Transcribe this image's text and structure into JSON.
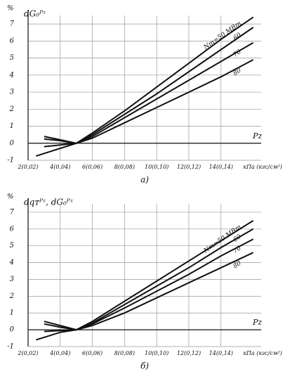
{
  "chart_data": [
    {
      "type": "line",
      "panel": "а)",
      "y_unit": "%",
      "ylabel": "dG₀ᴾᶻ",
      "xlabel": "Pz",
      "x_unit": "кПа (кгс/см²)",
      "x": [
        2.5,
        3,
        4,
        5,
        6,
        8,
        10,
        12,
        14,
        16
      ],
      "series": [
        {
          "name": "Nт=50 МВт",
          "color": "#111111",
          "values": [
            -0.75,
            -0.6,
            -0.3,
            0,
            0.6,
            1.9,
            3.3,
            4.7,
            6.1,
            7.4
          ]
        },
        {
          "name": "60",
          "color": "#111111",
          "values": [
            null,
            0.25,
            0.15,
            0,
            0.5,
            1.7,
            2.9,
            4.2,
            5.5,
            6.8
          ]
        },
        {
          "name": "70",
          "color": "#111111",
          "values": [
            null,
            0.4,
            0.2,
            0,
            0.4,
            1.5,
            2.6,
            3.7,
            4.8,
            5.9
          ]
        },
        {
          "name": "80",
          "color": "#111111",
          "values": [
            null,
            -0.2,
            -0.1,
            0,
            0.3,
            1.2,
            2.1,
            3.0,
            3.9,
            4.9
          ]
        }
      ],
      "xlim": [
        2,
        16.5
      ],
      "ylim": [
        -1,
        7.5
      ],
      "xticks": [
        {
          "value": 2,
          "label": "2(0,02)"
        },
        {
          "value": 4,
          "label": "4(0,04)"
        },
        {
          "value": 6,
          "label": "6(0,06)"
        },
        {
          "value": 8,
          "label": "8(0,08)"
        },
        {
          "value": 10,
          "label": "10(0,10)"
        },
        {
          "value": 12,
          "label": "12(0,12)"
        },
        {
          "value": 14,
          "label": "14(0,14)"
        }
      ],
      "yticks": [
        -1,
        0,
        1,
        2,
        3,
        4,
        5,
        6,
        7
      ],
      "grid": true
    },
    {
      "type": "line",
      "panel": "б)",
      "y_unit": "%",
      "ylabel": "dqᴛᴾᶻ, dG₀ᴾᶻ",
      "xlabel": "Pz",
      "x_unit": "кПа (кгс/см²)",
      "x": [
        2.5,
        3,
        4,
        5,
        6,
        8,
        10,
        12,
        14,
        16
      ],
      "series": [
        {
          "name": "Nт=50 МВт",
          "color": "#111111",
          "values": [
            -0.6,
            -0.45,
            -0.15,
            0,
            0.5,
            1.7,
            2.9,
            4.1,
            5.3,
            6.5
          ]
        },
        {
          "name": "60",
          "color": "#111111",
          "values": [
            null,
            0.35,
            0.15,
            0,
            0.4,
            1.5,
            2.6,
            3.7,
            4.9,
            6.0
          ]
        },
        {
          "name": "70",
          "color": "#111111",
          "values": [
            null,
            0.5,
            0.25,
            0,
            0.35,
            1.3,
            2.3,
            3.3,
            4.4,
            5.4
          ]
        },
        {
          "name": "80",
          "color": "#111111",
          "values": [
            null,
            -0.1,
            -0.05,
            0,
            0.25,
            1.0,
            1.9,
            2.8,
            3.7,
            4.6
          ]
        }
      ],
      "xlim": [
        2,
        16.5
      ],
      "ylim": [
        -1,
        7.5
      ],
      "xticks": [
        {
          "value": 2,
          "label": "2(0,02)"
        },
        {
          "value": 4,
          "label": "4(0,04)"
        },
        {
          "value": 6,
          "label": "6(0,06)"
        },
        {
          "value": 8,
          "label": "8(0,08)"
        },
        {
          "value": 10,
          "label": "10(0,10)"
        },
        {
          "value": 12,
          "label": "12(0,12)"
        },
        {
          "value": 14,
          "label": "14(0,14)"
        }
      ],
      "yticks": [
        -1,
        0,
        1,
        2,
        3,
        4,
        5,
        6,
        7
      ],
      "grid": true
    }
  ]
}
